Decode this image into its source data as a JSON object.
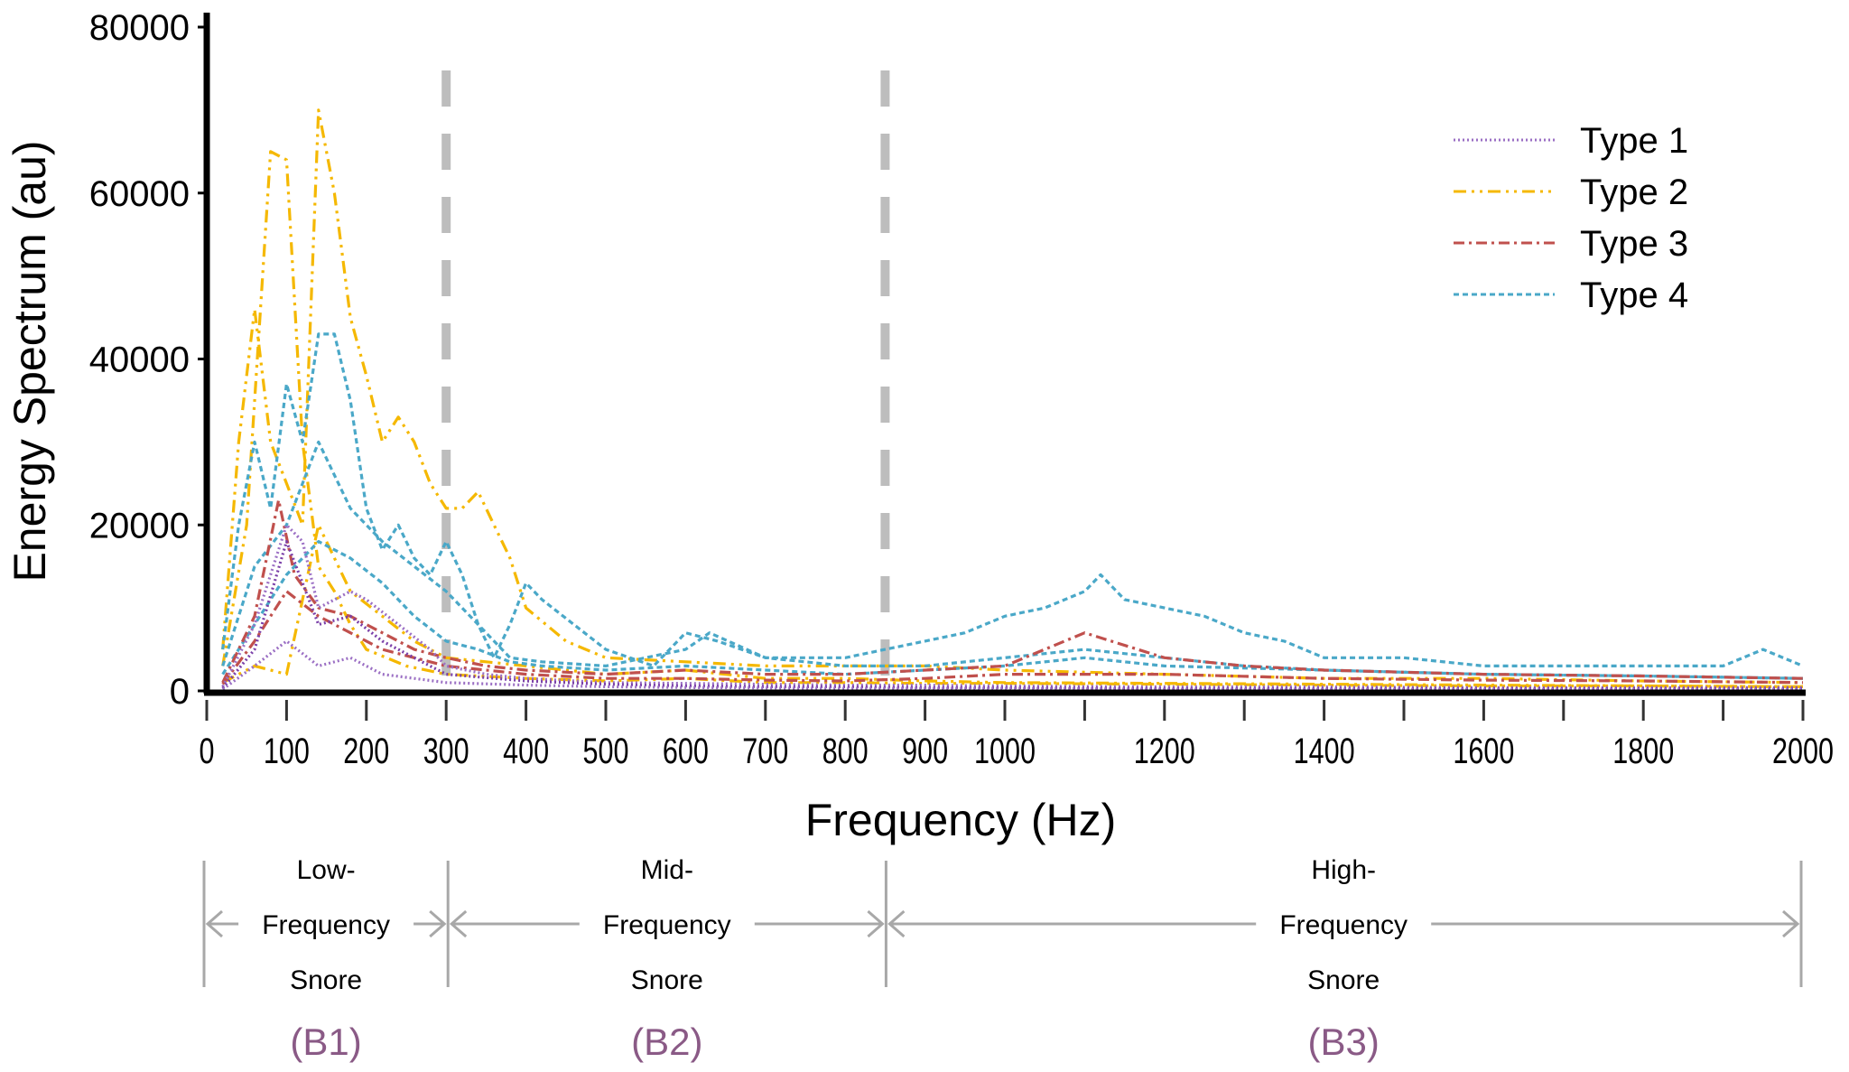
{
  "chart_data": {
    "type": "line",
    "title": "",
    "xlabel": "Frequency (Hz)",
    "ylabel": "Energy Spectrum (au)",
    "xlim": [
      0,
      2000
    ],
    "ylim": [
      0,
      80000
    ],
    "grid": false,
    "legend_position": "top-right",
    "x_ticks": [
      0,
      100,
      200,
      300,
      400,
      500,
      600,
      700,
      800,
      900,
      1000,
      1100,
      1200,
      1300,
      1400,
      1500,
      1600,
      1700,
      1800,
      1900,
      2000
    ],
    "x_tick_labels": [
      "0",
      "100",
      "200",
      "300",
      "400",
      "500",
      "600",
      "700",
      "800",
      "900",
      "1000",
      "",
      "1200",
      "",
      "1400",
      "",
      "1600",
      "",
      "1800",
      "",
      "2000"
    ],
    "y_ticks": [
      0,
      20000,
      40000,
      60000,
      80000
    ],
    "y_tick_labels": [
      "0",
      "20000",
      "40000",
      "60000",
      "80000"
    ],
    "legend": [
      {
        "name": "Type 1",
        "color": "#9b6fc4",
        "style": "dotted"
      },
      {
        "name": "Type 2",
        "color": "#f5b800",
        "style": "dash-dot-dot"
      },
      {
        "name": "Type 3",
        "color": "#c0504d",
        "style": "dash-dot"
      },
      {
        "name": "Type 4",
        "color": "#4aa8c8",
        "style": "dashed"
      }
    ],
    "boundaries": [
      300,
      850
    ],
    "bands": [
      {
        "lines": [
          "Low-",
          "Frequency",
          "Snore"
        ],
        "code": "(B1)",
        "from": 0,
        "to": 300
      },
      {
        "lines": [
          "Mid-",
          "Frequency",
          "Snore"
        ],
        "code": "(B2)",
        "from": 300,
        "to": 850
      },
      {
        "lines": [
          "High-",
          "Frequency",
          "Snore"
        ],
        "code": "(B3)",
        "from": 850,
        "to": 2000
      }
    ],
    "series": [
      {
        "name": "Type 2",
        "color": "#f5b800",
        "dash": "14 6 3 6 3 6",
        "x": [
          20,
          40,
          60,
          80,
          100,
          120,
          140,
          160,
          180,
          200,
          220,
          240,
          260,
          280,
          300,
          320,
          340,
          360,
          380,
          400,
          450,
          500,
          600,
          700,
          800,
          900,
          1000,
          1200,
          1400,
          1600,
          1800,
          2000
        ],
        "y": [
          5000,
          30000,
          46000,
          30000,
          25000,
          20000,
          70000,
          60000,
          45000,
          38000,
          30000,
          33000,
          30000,
          25000,
          22000,
          22000,
          24000,
          20000,
          16000,
          10000,
          6000,
          4000,
          3500,
          3000,
          3000,
          3000,
          2500,
          2000,
          1500,
          1500,
          1200,
          1000
        ]
      },
      {
        "name": "Type 2",
        "color": "#f5b800",
        "dash": "14 6 3 6 3 6",
        "x": [
          20,
          50,
          80,
          100,
          120,
          140,
          160,
          180,
          200,
          250,
          300,
          400,
          500,
          600,
          700,
          800,
          900,
          1000,
          1200,
          1400,
          1600,
          1800,
          2000
        ],
        "y": [
          3000,
          20000,
          65000,
          64000,
          30000,
          15000,
          12000,
          8000,
          5000,
          3000,
          2000,
          1500,
          1200,
          1500,
          1000,
          1000,
          900,
          900,
          800,
          700,
          600,
          600,
          500
        ]
      },
      {
        "name": "Type 2",
        "color": "#f5b800",
        "dash": "14 6 3 6 3 6",
        "x": [
          20,
          60,
          100,
          140,
          180,
          220,
          260,
          300,
          350,
          400,
          450,
          500,
          600,
          700,
          800,
          900,
          1000,
          1200,
          1400,
          1600,
          1800,
          2000
        ],
        "y": [
          1000,
          3000,
          2000,
          20000,
          12000,
          9000,
          6000,
          4000,
          3500,
          3000,
          2500,
          2000,
          2500,
          1500,
          1500,
          1200,
          1000,
          900,
          800,
          700,
          600,
          500
        ]
      },
      {
        "name": "Type 4",
        "color": "#4aa8c8",
        "dash": "6 4",
        "x": [
          20,
          40,
          60,
          80,
          100,
          120,
          140,
          160,
          180,
          200,
          220,
          240,
          260,
          280,
          300,
          320,
          340,
          360,
          380,
          400,
          420,
          460,
          500,
          560,
          600,
          640,
          700,
          800,
          850,
          900,
          950,
          1000,
          1050,
          1100,
          1120,
          1150,
          1200,
          1250,
          1300,
          1350,
          1400,
          1500,
          1600,
          1700,
          1800,
          1900,
          1950,
          2000
        ],
        "y": [
          5000,
          20000,
          30000,
          22000,
          37000,
          30000,
          43000,
          43000,
          35000,
          22000,
          17000,
          20000,
          16000,
          14000,
          18000,
          14000,
          8000,
          4000,
          8000,
          13000,
          11000,
          8000,
          5000,
          3000,
          7000,
          6000,
          4000,
          4000,
          5000,
          6000,
          7000,
          9000,
          10000,
          12000,
          14000,
          11000,
          10000,
          9000,
          7000,
          6000,
          4000,
          4000,
          3000,
          3000,
          3000,
          3000,
          5000,
          3000
        ]
      },
      {
        "name": "Type 4",
        "color": "#4aa8c8",
        "dash": "6 4",
        "x": [
          20,
          60,
          100,
          140,
          180,
          220,
          260,
          300,
          340,
          380,
          420,
          500,
          600,
          630,
          700,
          800,
          900,
          1000,
          1100,
          1200,
          1300,
          1400,
          1600,
          1800,
          2000
        ],
        "y": [
          3000,
          15000,
          20000,
          30000,
          22000,
          18000,
          15000,
          12000,
          8000,
          4000,
          3500,
          3000,
          5000,
          7000,
          4000,
          3000,
          3000,
          4000,
          5000,
          4000,
          3000,
          2500,
          2000,
          1800,
          1500
        ]
      },
      {
        "name": "Type 4",
        "color": "#4aa8c8",
        "dash": "6 4",
        "x": [
          20,
          60,
          100,
          140,
          180,
          220,
          260,
          300,
          340,
          380,
          420,
          500,
          600,
          700,
          800,
          900,
          1000,
          1100,
          1200,
          1400,
          1600,
          1800,
          2000
        ],
        "y": [
          2000,
          8000,
          14000,
          18000,
          16000,
          13000,
          9000,
          6000,
          5000,
          3500,
          3000,
          2500,
          3000,
          2500,
          2000,
          2500,
          3000,
          4000,
          3000,
          2500,
          2000,
          1800,
          1500
        ]
      },
      {
        "name": "Type 3",
        "color": "#c0504d",
        "dash": "12 5 3 5",
        "x": [
          20,
          60,
          90,
          110,
          140,
          180,
          220,
          260,
          300,
          350,
          400,
          500,
          600,
          700,
          800,
          900,
          1000,
          1100,
          1200,
          1300,
          1400,
          1600,
          1800,
          2000
        ],
        "y": [
          1000,
          9000,
          23000,
          14000,
          10000,
          9000,
          7000,
          5000,
          4000,
          3000,
          2500,
          2000,
          2500,
          2000,
          2000,
          2500,
          3000,
          7000,
          4000,
          3000,
          2500,
          2000,
          1800,
          1500
        ]
      },
      {
        "name": "Type 3",
        "color": "#c0504d",
        "dash": "12 5 3 5",
        "x": [
          20,
          60,
          100,
          140,
          180,
          220,
          260,
          300,
          400,
          500,
          600,
          700,
          800,
          900,
          1000,
          1200,
          1400,
          1600,
          1800,
          2000
        ],
        "y": [
          800,
          6000,
          12000,
          9000,
          7000,
          5000,
          4000,
          3000,
          2000,
          1500,
          1500,
          1300,
          1200,
          1500,
          2000,
          2000,
          1500,
          1300,
          1200,
          1000
        ]
      },
      {
        "name": "Type 1",
        "color": "#9b6fc4",
        "dash": "2 3",
        "x": [
          20,
          60,
          100,
          120,
          140,
          180,
          200,
          240,
          280,
          300,
          350,
          400,
          500,
          600,
          700,
          800,
          900,
          1000,
          1200,
          1400,
          1600,
          1800,
          2000
        ],
        "y": [
          500,
          8000,
          20000,
          18000,
          10000,
          12000,
          11000,
          8000,
          5000,
          3000,
          2000,
          1500,
          1000,
          900,
          800,
          700,
          700,
          600,
          500,
          500,
          400,
          400,
          400
        ]
      },
      {
        "name": "Type 1",
        "color": "#7a3fa8",
        "dash": "2 3",
        "x": [
          20,
          60,
          100,
          140,
          180,
          220,
          260,
          300,
          400,
          500,
          600,
          700,
          800,
          900,
          1000,
          1200,
          1400,
          1600,
          1800,
          2000
        ],
        "y": [
          300,
          5000,
          18000,
          8000,
          9000,
          6000,
          4000,
          2000,
          1200,
          800,
          600,
          500,
          500,
          400,
          400,
          300,
          300,
          300,
          300,
          300
        ]
      },
      {
        "name": "Type 1",
        "color": "#9b6fc4",
        "dash": "2 3",
        "x": [
          20,
          60,
          100,
          140,
          180,
          220,
          260,
          300,
          400,
          500,
          600,
          800,
          1000,
          1200,
          1400,
          1600,
          1800,
          2000
        ],
        "y": [
          200,
          3000,
          6000,
          3000,
          4000,
          2000,
          1500,
          1000,
          700,
          500,
          400,
          300,
          300,
          200,
          200,
          200,
          200,
          200
        ]
      }
    ]
  }
}
